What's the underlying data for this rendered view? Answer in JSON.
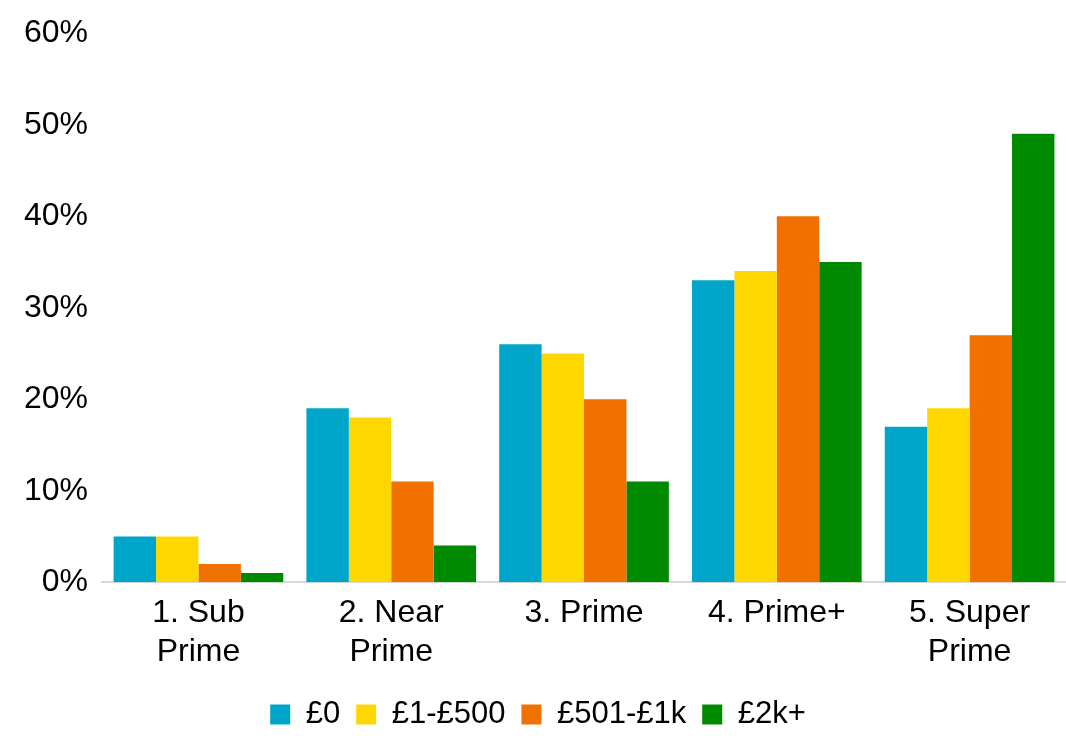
{
  "chart_data": {
    "type": "bar",
    "categories": [
      "1. Sub Prime",
      "2. Near Prime",
      "3. Prime",
      "4. Prime+",
      "5. Super Prime"
    ],
    "series": [
      {
        "name": "£0",
        "color": "#00a6ca",
        "values": [
          5,
          19,
          26,
          33,
          17
        ]
      },
      {
        "name": "£1-£500",
        "color": "#ffd700",
        "values": [
          5,
          18,
          25,
          34,
          19
        ]
      },
      {
        "name": "£501-£1k",
        "color": "#f07000",
        "values": [
          2,
          11,
          20,
          40,
          27
        ]
      },
      {
        "name": "£2k+",
        "color": "#008a00",
        "values": [
          1,
          4,
          11,
          35,
          49
        ]
      }
    ],
    "ylim": [
      0,
      60
    ],
    "yticks": [
      {
        "value": 0,
        "label": "0%"
      },
      {
        "value": 10,
        "label": "10%"
      },
      {
        "value": 20,
        "label": "20%"
      },
      {
        "value": 30,
        "label": "30%"
      },
      {
        "value": 40,
        "label": "40%"
      },
      {
        "value": 50,
        "label": "50%"
      },
      {
        "value": 60,
        "label": "60%"
      }
    ],
    "grid": false,
    "legend": "bottom"
  }
}
